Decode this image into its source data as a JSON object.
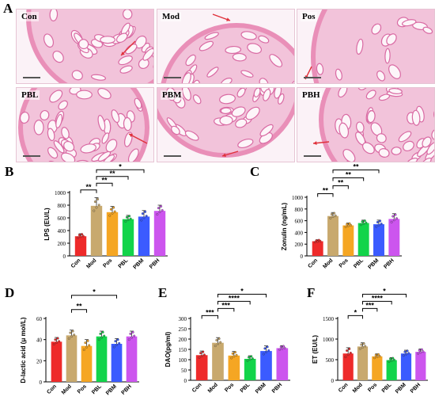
{
  "panel_letters": {
    "a": "A",
    "b": "B",
    "c": "C",
    "d": "D",
    "e": "E",
    "f": "F"
  },
  "histology": [
    {
      "label": "Con"
    },
    {
      "label": "Mod"
    },
    {
      "label": "Pos"
    },
    {
      "label": "PBL"
    },
    {
      "label": "PBM"
    },
    {
      "label": "PBH"
    }
  ],
  "colors": {
    "Con": "#ee2a2a",
    "Mod": "#c8a96e",
    "Pos": "#f5a623",
    "PBL": "#12d44a",
    "PBM": "#3b5bff",
    "PBH": "#cc55ee",
    "tissue": "#e98fb8",
    "arrow": "#e0303a"
  },
  "chart_data": [
    {
      "id": "B",
      "type": "bar",
      "categories": [
        "Con",
        "Mod",
        "Pos",
        "PBL",
        "PBM",
        "PBH"
      ],
      "values": [
        310,
        790,
        690,
        580,
        620,
        710
      ],
      "errors": [
        40,
        130,
        90,
        60,
        95,
        90
      ],
      "ylabel": "LPS (EU/L)",
      "ylim": [
        0,
        1000
      ],
      "yticks": [
        0,
        200,
        400,
        600,
        800,
        1000
      ],
      "significance": [
        {
          "from": "Con",
          "to": "Mod",
          "label": "**"
        },
        {
          "from": "Mod",
          "to": "Pos",
          "label": "**"
        },
        {
          "from": "Mod",
          "to": "PBL",
          "label": "**"
        },
        {
          "from": "Mod",
          "to": "PBM",
          "label": "*"
        }
      ]
    },
    {
      "id": "C",
      "type": "bar",
      "categories": [
        "Con",
        "Mod",
        "Pos",
        "PBL",
        "PBM",
        "PBH"
      ],
      "values": [
        250,
        680,
        520,
        560,
        540,
        630
      ],
      "errors": [
        25,
        60,
        40,
        50,
        70,
        90
      ],
      "ylabel": "Zonulin (ng/mL)",
      "ylim": [
        0,
        1000
      ],
      "yticks": [
        0,
        200,
        400,
        600,
        800,
        1000
      ],
      "significance": [
        {
          "from": "Con",
          "to": "Mod",
          "label": "**"
        },
        {
          "from": "Mod",
          "to": "Pos",
          "label": "**"
        },
        {
          "from": "Mod",
          "to": "PBL",
          "label": "**"
        },
        {
          "from": "Mod",
          "to": "PBM",
          "label": "**"
        }
      ]
    },
    {
      "id": "D",
      "type": "bar",
      "categories": [
        "Con",
        "Mod",
        "Pos",
        "PBL",
        "PBM",
        "PBH"
      ],
      "values": [
        38,
        44,
        34,
        43,
        36,
        43
      ],
      "errors": [
        4,
        5,
        6,
        5,
        5,
        5
      ],
      "ylabel": "D-lactic acid (μ mol/L)",
      "ylim": [
        0,
        60
      ],
      "yticks": [
        0,
        20,
        40,
        60
      ],
      "significance": [
        {
          "from": "Mod",
          "to": "Pos",
          "label": "**"
        },
        {
          "from": "Mod",
          "to": "PBM",
          "label": "*"
        }
      ]
    },
    {
      "id": "E",
      "type": "bar",
      "categories": [
        "Con",
        "Mod",
        "Pos",
        "PBL",
        "PBM",
        "PBH"
      ],
      "values": [
        122,
        182,
        120,
        104,
        142,
        156
      ],
      "errors": [
        20,
        25,
        20,
        15,
        25,
        12
      ],
      "ylabel": "DAO(pg/ml)",
      "ylim": [
        0,
        300
      ],
      "yticks": [
        0,
        50,
        100,
        150,
        200,
        250,
        300
      ],
      "significance": [
        {
          "from": "Con",
          "to": "Mod",
          "label": "***"
        },
        {
          "from": "Mod",
          "to": "Pos",
          "label": "***"
        },
        {
          "from": "Mod",
          "to": "PBL",
          "label": "****"
        },
        {
          "from": "Mod",
          "to": "PBM",
          "label": "*"
        }
      ]
    },
    {
      "id": "F",
      "type": "bar",
      "categories": [
        "Con",
        "Mod",
        "Pos",
        "PBL",
        "PBM",
        "PBH"
      ],
      "values": [
        650,
        820,
        580,
        490,
        650,
        690
      ],
      "errors": [
        140,
        90,
        60,
        60,
        80,
        70
      ],
      "ylabel": "ET (EU/L)",
      "ylim": [
        0,
        1500
      ],
      "yticks": [
        0,
        500,
        1000,
        1500
      ],
      "significance": [
        {
          "from": "Con",
          "to": "Mod",
          "label": "*"
        },
        {
          "from": "Mod",
          "to": "Pos",
          "label": "***"
        },
        {
          "from": "Mod",
          "to": "PBL",
          "label": "****"
        },
        {
          "from": "Mod",
          "to": "PBM",
          "label": "*"
        }
      ]
    }
  ]
}
